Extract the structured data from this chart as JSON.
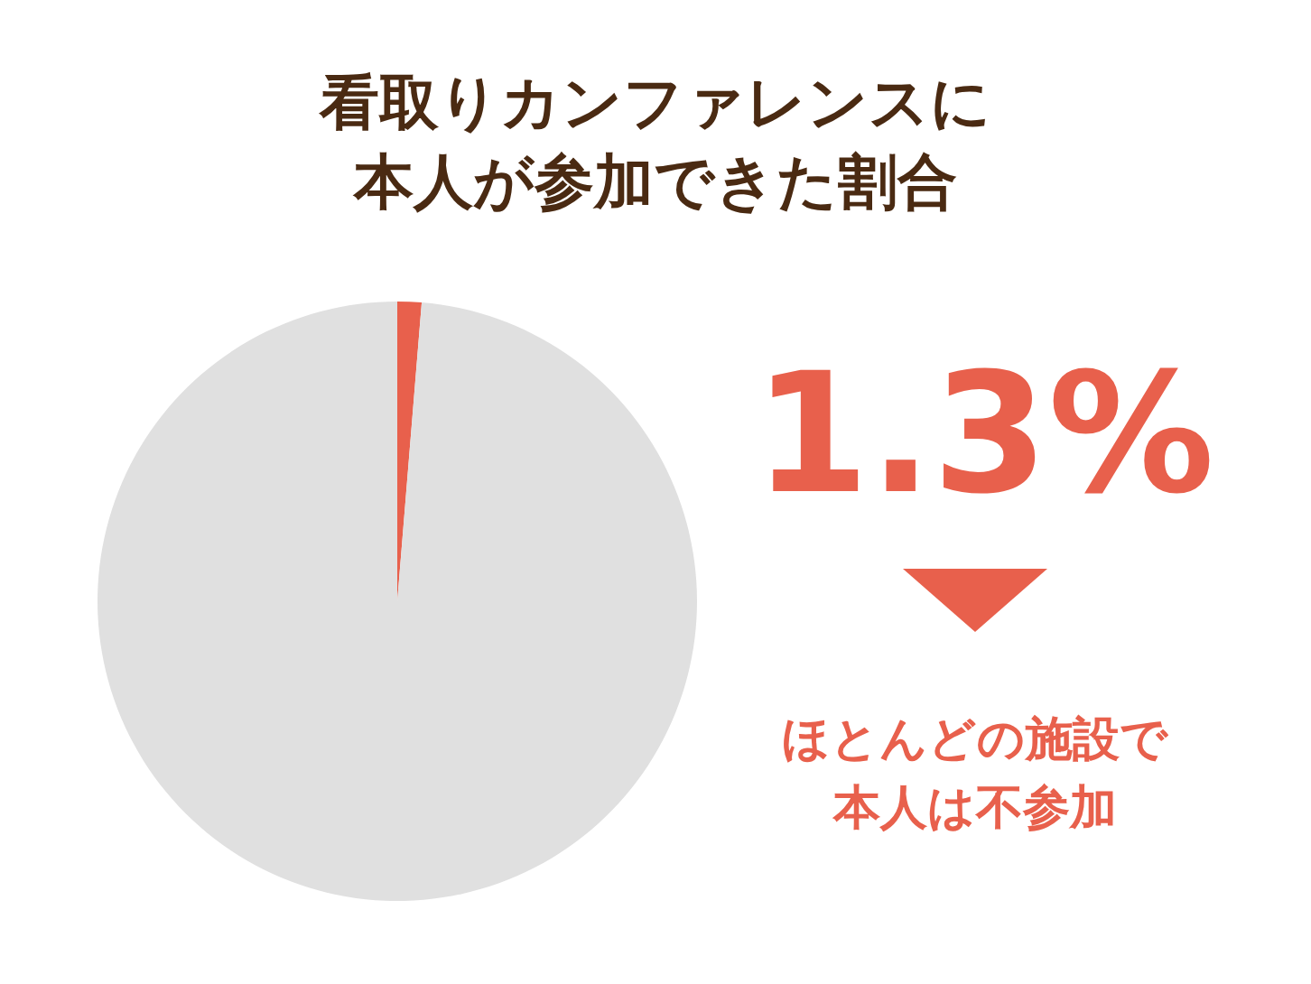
{
  "chart_data": {
    "type": "pie",
    "title": "看取りカンファレンスに本人が参加できた割合",
    "categories": [
      null,
      null
    ],
    "values": [
      1.3,
      98.7
    ],
    "colors": [
      "#e8604c",
      "#e0e0e0"
    ],
    "annotations": [
      "1.3%",
      "ほとんどの施設で本人は不参加"
    ]
  }
}
